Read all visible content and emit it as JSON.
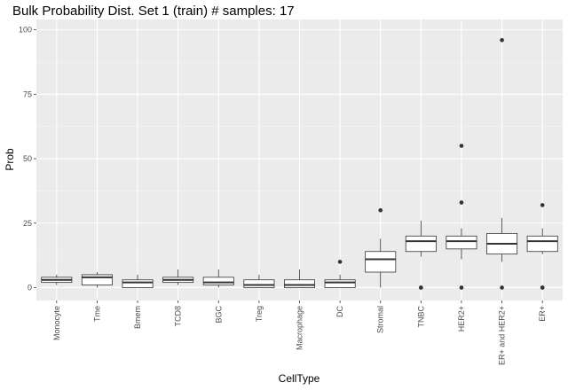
{
  "chart_data": {
    "type": "box",
    "title": "Bulk Probability Dist. Set 1 (train) # samples: 17",
    "xlabel": "CellType",
    "ylabel": "Prob",
    "ylim": [
      -5,
      104
    ],
    "yticks": [
      0,
      25,
      50,
      75,
      100
    ],
    "grid": true,
    "categories": [
      "Monocyte",
      "Tme",
      "Bmem",
      "TCD8",
      "BGC",
      "Treg",
      "Macrophage",
      "DC",
      "Stromal",
      "TNBC",
      "HER2+",
      "ER+ and HER2+",
      "ER+"
    ],
    "boxes": [
      {
        "min": 1,
        "q1": 2,
        "median": 3,
        "q3": 4,
        "max": 5,
        "outliers": []
      },
      {
        "min": 0,
        "q1": 1,
        "median": 4,
        "q3": 5,
        "max": 6,
        "outliers": []
      },
      {
        "min": 0,
        "q1": 0,
        "median": 2,
        "q3": 3,
        "max": 5,
        "outliers": []
      },
      {
        "min": 1,
        "q1": 2,
        "median": 3,
        "q3": 4,
        "max": 7,
        "outliers": []
      },
      {
        "min": 0,
        "q1": 1,
        "median": 2,
        "q3": 4,
        "max": 7,
        "outliers": []
      },
      {
        "min": 0,
        "q1": 0,
        "median": 1,
        "q3": 3,
        "max": 5,
        "outliers": []
      },
      {
        "min": 0,
        "q1": 0,
        "median": 1,
        "q3": 3,
        "max": 7,
        "outliers": []
      },
      {
        "min": 0,
        "q1": 0,
        "median": 2,
        "q3": 3,
        "max": 5,
        "outliers": [
          10
        ]
      },
      {
        "min": 0,
        "q1": 6,
        "median": 11,
        "q3": 14,
        "max": 19,
        "outliers": [
          30
        ]
      },
      {
        "min": 12,
        "q1": 14,
        "median": 18,
        "q3": 20,
        "max": 26,
        "outliers": [
          0,
          0
        ]
      },
      {
        "min": 11,
        "q1": 15,
        "median": 18,
        "q3": 20,
        "max": 23,
        "outliers": [
          0,
          33,
          55
        ]
      },
      {
        "min": 10,
        "q1": 13,
        "median": 17,
        "q3": 21,
        "max": 27,
        "outliers": [
          0,
          96
        ]
      },
      {
        "min": 13,
        "q1": 14,
        "median": 18,
        "q3": 20,
        "max": 23,
        "outliers": [
          0,
          0,
          32
        ]
      }
    ]
  }
}
